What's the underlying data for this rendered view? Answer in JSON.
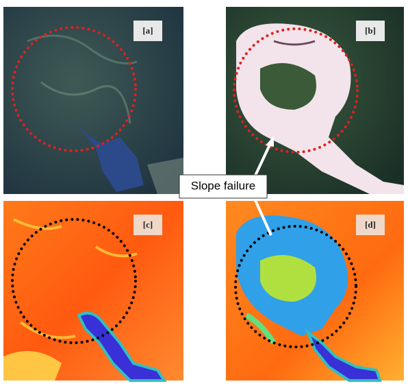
{
  "panels": [
    {
      "label": "[a]"
    },
    {
      "label": "[b]"
    },
    {
      "label": "[c]"
    },
    {
      "label": "[d]"
    }
  ],
  "annotation": "Slope failure"
}
